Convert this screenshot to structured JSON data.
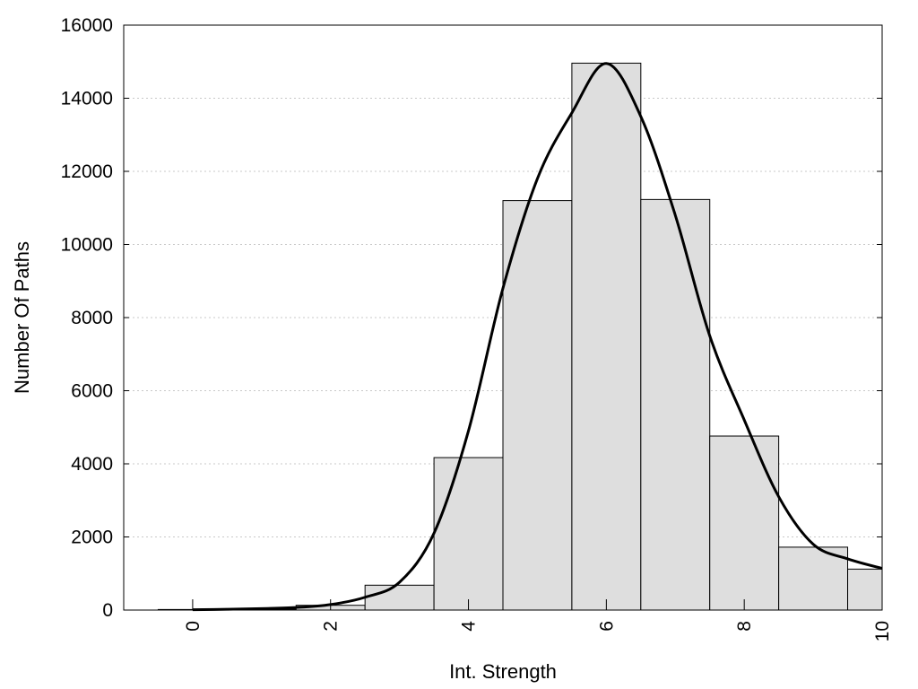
{
  "chart_data": {
    "type": "bar",
    "xlabel": "Int. Strength",
    "ylabel": "Number Of Paths",
    "xlim": [
      -1,
      10
    ],
    "ylim": [
      0,
      16000
    ],
    "x_ticks": [
      0,
      2,
      4,
      6,
      8,
      10
    ],
    "y_ticks": [
      0,
      2000,
      4000,
      6000,
      8000,
      10000,
      12000,
      14000,
      16000
    ],
    "grid": true,
    "bars": {
      "x": [
        0,
        1,
        2,
        3,
        4,
        5,
        6,
        7,
        8,
        9,
        10
      ],
      "values": [
        15,
        25,
        130,
        680,
        4170,
        11200,
        14960,
        11230,
        4760,
        1720,
        1120
      ],
      "color": "#dedede",
      "edge_color": "#000000"
    },
    "curve": {
      "x": [
        0,
        0.5,
        1,
        1.5,
        2,
        2.5,
        3,
        3.5,
        4,
        4.5,
        5,
        5.5,
        6,
        6.5,
        7,
        7.5,
        8,
        8.5,
        9,
        9.5,
        10
      ],
      "y": [
        10,
        20,
        40,
        70,
        150,
        350,
        760,
        2100,
        4900,
        8800,
        11800,
        13600,
        14950,
        13500,
        10800,
        7500,
        5200,
        3100,
        1800,
        1400,
        1140
      ],
      "color": "#000000"
    }
  }
}
